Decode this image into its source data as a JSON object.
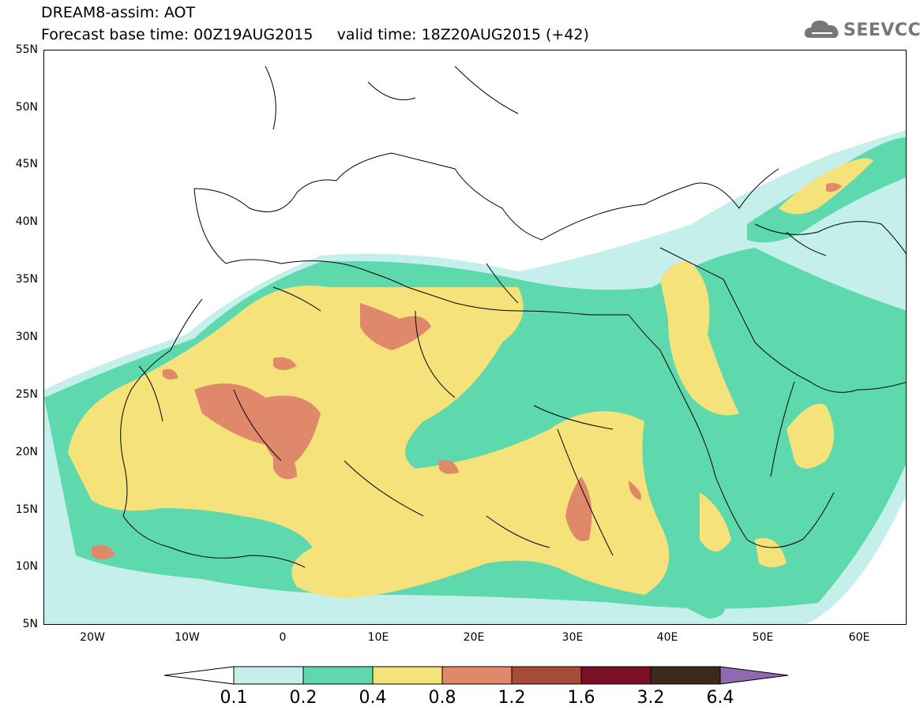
{
  "header": {
    "line1": "DREAM8-assim: AOT",
    "line2": "Forecast base time: 00Z19AUG2015     valid time: 18Z20AUG2015 (+42)"
  },
  "logo": {
    "text": "SEEVCCC",
    "icon": "cloud-icon"
  },
  "axes": {
    "lat_labels": [
      "55N",
      "50N",
      "45N",
      "40N",
      "35N",
      "30N",
      "25N",
      "20N",
      "15N",
      "10N",
      "5N"
    ],
    "lon_labels": [
      "20W",
      "10W",
      "0",
      "10E",
      "20E",
      "30E",
      "40E",
      "50E",
      "60E"
    ]
  },
  "colorbar": {
    "labels": [
      "0.1",
      "0.2",
      "0.4",
      "0.8",
      "1.2",
      "1.6",
      "3.2",
      "6.4"
    ],
    "colors": [
      "#c4efea",
      "#5dd9ad",
      "#f5e27a",
      "#e0896a",
      "#a64a3a",
      "#7a1024",
      "#3e2a1a",
      "#8e6ab0"
    ]
  }
}
